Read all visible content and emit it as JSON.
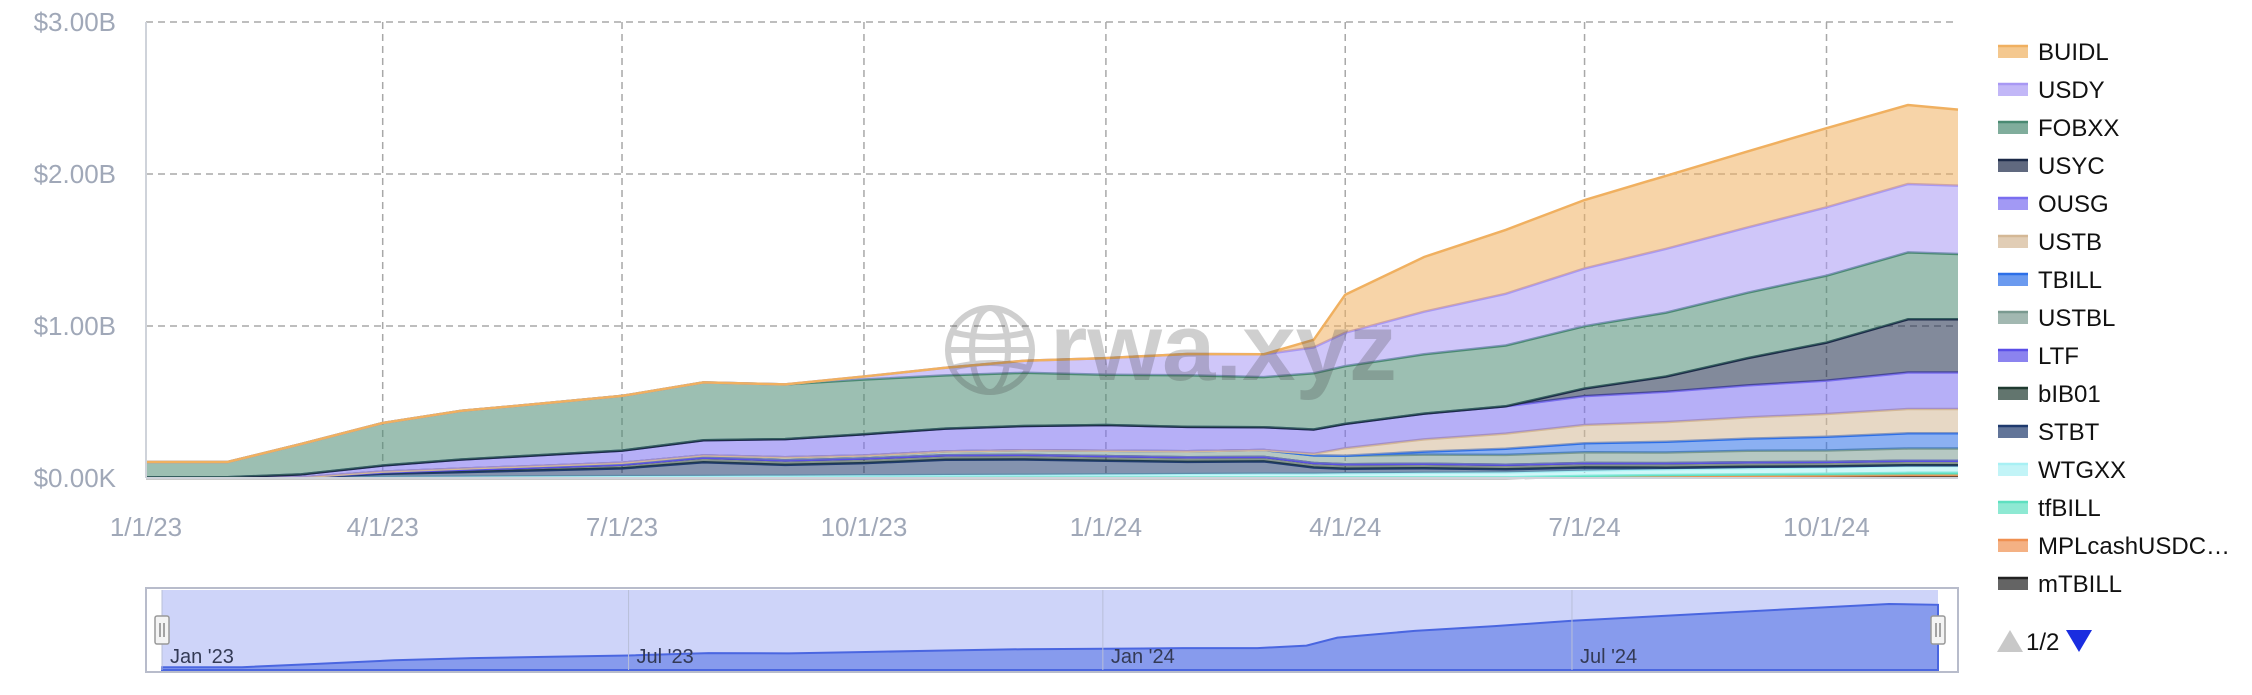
{
  "watermark": "rwa.xyz",
  "colors": {
    "axis_text": "#a0a8b8",
    "grid": "#a8a8a8",
    "navigator_fill": "#c5ccf8",
    "navigator_series": "#6f88e8",
    "pager_up": "#c8c8c8",
    "pager_down": "#1a2de0"
  },
  "navigator": {
    "labels": [
      "Jan '23",
      "Jul '23",
      "Jan '24",
      "Jul '24"
    ]
  },
  "legend_pager": {
    "text": "1/2",
    "up_icon": "triangle-up-icon",
    "down_icon": "triangle-down-icon"
  },
  "chart_data": {
    "type": "area",
    "stacked": true,
    "ylim": [
      0,
      3.0
    ],
    "y_unit": "B",
    "yticks": [
      "$0.00K",
      "$1.00B",
      "$2.00B",
      "$3.00B"
    ],
    "ytick_values": [
      0,
      1.0,
      2.0,
      3.0
    ],
    "xticks": [
      "1/1/23",
      "4/1/23",
      "7/1/23",
      "10/1/23",
      "1/1/24",
      "4/1/24",
      "7/1/24",
      "10/1/24"
    ],
    "x": [
      "1/1/23",
      "2/1/23",
      "3/1/23",
      "4/1/23",
      "5/1/23",
      "6/1/23",
      "7/1/23",
      "8/1/23",
      "9/1/23",
      "10/1/23",
      "11/1/23",
      "12/1/23",
      "1/1/24",
      "2/1/24",
      "3/1/24",
      "3/20/24",
      "4/1/24",
      "5/1/24",
      "6/1/24",
      "7/1/24",
      "8/1/24",
      "9/1/24",
      "10/1/24",
      "11/1/24",
      "11/20/24"
    ],
    "grid": true,
    "legend_position": "right",
    "series": [
      {
        "name": "mTBILL",
        "color": "#222222",
        "values": [
          0,
          0,
          0,
          0,
          0,
          0,
          0,
          0,
          0,
          0,
          0,
          0,
          0,
          0,
          0,
          0,
          0,
          0,
          0,
          0.005,
          0.008,
          0.01,
          0.012,
          0.015,
          0.015
        ]
      },
      {
        "name": "MPLcashUSDC…",
        "color": "#f09050",
        "values": [
          0.005,
          0.005,
          0.004,
          0.004,
          0.004,
          0.004,
          0.004,
          0.004,
          0.004,
          0.004,
          0.004,
          0.004,
          0.004,
          0.004,
          0.004,
          0.004,
          0.004,
          0.004,
          0.004,
          0.004,
          0.004,
          0.004,
          0.004,
          0.004,
          0.004
        ]
      },
      {
        "name": "tfBILL",
        "color": "#5ee0c0",
        "values": [
          0,
          0,
          0,
          0,
          0,
          0,
          0,
          0,
          0,
          0,
          0,
          0,
          0,
          0,
          0,
          0,
          0,
          0,
          0,
          0.005,
          0.008,
          0.01,
          0.012,
          0.015,
          0.015
        ]
      },
      {
        "name": "WTGXX",
        "color": "#a8f0f4",
        "values": [
          0,
          0,
          0,
          0.003,
          0.005,
          0.007,
          0.009,
          0.01,
          0.012,
          0.014,
          0.016,
          0.018,
          0.02,
          0.022,
          0.025,
          0.025,
          0.027,
          0.03,
          0.033,
          0.035,
          0.038,
          0.04,
          0.043,
          0.045,
          0.045
        ]
      },
      {
        "name": "STBT",
        "color": "#1f3a6e",
        "values": [
          0,
          0,
          0,
          0.02,
          0.03,
          0.04,
          0.05,
          0.09,
          0.07,
          0.08,
          0.1,
          0.1,
          0.09,
          0.08,
          0.08,
          0.04,
          0.03,
          0.03,
          0.02,
          0.02,
          0.01,
          0.01,
          0.005,
          0.005,
          0.005
        ]
      },
      {
        "name": "bIB01",
        "color": "#1f3a30",
        "values": [
          0,
          0,
          0,
          0.01,
          0.015,
          0.02,
          0.025,
          0.03,
          0.03,
          0.03,
          0.03,
          0.03,
          0.03,
          0.03,
          0.03,
          0.03,
          0.03,
          0.03,
          0.03,
          0.03,
          0.03,
          0.03,
          0.03,
          0.03,
          0.03
        ]
      },
      {
        "name": "LTF",
        "color": "#5a4ee8",
        "values": [
          0,
          0,
          0,
          0,
          0,
          0,
          0,
          0,
          0,
          0,
          0,
          0,
          0,
          0,
          0,
          0,
          0,
          0,
          0,
          0,
          0,
          0,
          0,
          0,
          0
        ]
      },
      {
        "name": "USTBL",
        "color": "#7a9a90",
        "values": [
          0,
          0,
          0,
          0.005,
          0.008,
          0.01,
          0.012,
          0.015,
          0.02,
          0.02,
          0.025,
          0.03,
          0.035,
          0.04,
          0.045,
          0.05,
          0.055,
          0.06,
          0.065,
          0.07,
          0.07,
          0.075,
          0.075,
          0.08,
          0.08
        ]
      },
      {
        "name": "TBILL",
        "color": "#2c6fe8",
        "values": [
          0,
          0,
          0,
          0,
          0,
          0,
          0,
          0,
          0,
          0,
          0,
          0,
          0,
          0,
          0,
          0,
          0,
          0.02,
          0.04,
          0.06,
          0.07,
          0.08,
          0.09,
          0.1,
          0.1
        ]
      },
      {
        "name": "USTB",
        "color": "#d4b896",
        "values": [
          0,
          0,
          0,
          0,
          0,
          0,
          0,
          0,
          0,
          0,
          0,
          0,
          0,
          0,
          0,
          0.01,
          0.05,
          0.08,
          0.1,
          0.12,
          0.13,
          0.14,
          0.15,
          0.16,
          0.16
        ]
      },
      {
        "name": "OUSG",
        "color": "#7a6ef0",
        "values": [
          0,
          0,
          0.02,
          0.04,
          0.06,
          0.07,
          0.08,
          0.1,
          0.12,
          0.14,
          0.15,
          0.16,
          0.17,
          0.16,
          0.15,
          0.16,
          0.16,
          0.17,
          0.18,
          0.19,
          0.2,
          0.21,
          0.22,
          0.24,
          0.24
        ]
      },
      {
        "name": "USYC",
        "color": "#1c2a48",
        "values": [
          0,
          0,
          0,
          0,
          0,
          0,
          0,
          0,
          0,
          0,
          0,
          0,
          0,
          0,
          0,
          0,
          0,
          0,
          0,
          0.05,
          0.1,
          0.18,
          0.25,
          0.35,
          0.35
        ]
      },
      {
        "name": "FOBXX",
        "color": "#4a8a72",
        "values": [
          0.1,
          0.1,
          0.2,
          0.28,
          0.32,
          0.34,
          0.36,
          0.38,
          0.36,
          0.36,
          0.35,
          0.35,
          0.33,
          0.34,
          0.33,
          0.37,
          0.38,
          0.39,
          0.4,
          0.41,
          0.42,
          0.43,
          0.44,
          0.44,
          0.43
        ]
      },
      {
        "name": "USDY",
        "color": "#a898f4",
        "values": [
          0,
          0,
          0,
          0,
          0,
          0,
          0,
          0,
          0,
          0.02,
          0.05,
          0.08,
          0.11,
          0.14,
          0.15,
          0.17,
          0.22,
          0.28,
          0.34,
          0.38,
          0.42,
          0.43,
          0.45,
          0.45,
          0.45
        ]
      },
      {
        "name": "BUIDL",
        "color": "#f0b060",
        "values": [
          0,
          0,
          0,
          0,
          0,
          0,
          0,
          0,
          0,
          0,
          0,
          0,
          0,
          0,
          0,
          0.05,
          0.25,
          0.36,
          0.42,
          0.45,
          0.48,
          0.5,
          0.52,
          0.52,
          0.5
        ]
      }
    ]
  }
}
